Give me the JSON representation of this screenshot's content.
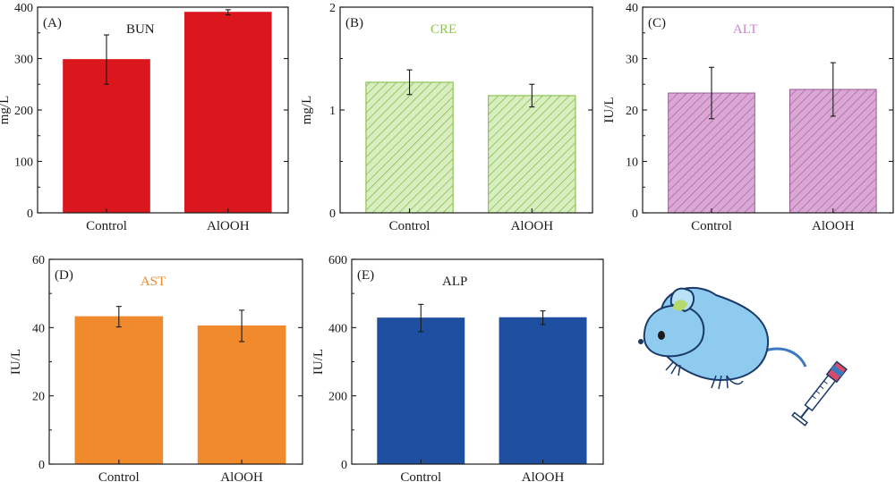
{
  "figure": {
    "panels": [
      {
        "id": "A",
        "panel_label": "(A)",
        "title": "BUN",
        "title_color": "#1a1a1a",
        "ylabel": "mg/L",
        "fill": "#d9171c",
        "hatch": false
      },
      {
        "id": "B",
        "panel_label": "(B)",
        "title": "CRE",
        "title_color": "#8cc63f",
        "ylabel": "mg/L",
        "fill": "#b7de8c",
        "hatch": true,
        "stroke": "#7dbb3b"
      },
      {
        "id": "C",
        "panel_label": "(C)",
        "title": "ALT",
        "title_color": "#cc88c8",
        "ylabel": "IU/L",
        "fill": "#dba8d6",
        "hatch": true,
        "stroke": "#9b5a97"
      },
      {
        "id": "D",
        "panel_label": "(D)",
        "title": "AST",
        "title_color": "#f08a2c",
        "ylabel": "IU/L",
        "fill": "#f08a2c",
        "hatch": false
      },
      {
        "id": "E",
        "panel_label": "(E)",
        "title": "ALP",
        "title_color": "#1a1a1a",
        "ylabel": "IU/L",
        "fill": "#1f4fa0",
        "hatch": false
      }
    ]
  },
  "chart_data": [
    {
      "type": "bar",
      "title": "BUN",
      "ylabel": "mg/L",
      "categories": [
        "Control",
        "AlOOH"
      ],
      "values": [
        298,
        390
      ],
      "errors": [
        48,
        5
      ],
      "ylim": [
        0,
        400
      ],
      "yticks": [
        0,
        100,
        200,
        300,
        400
      ]
    },
    {
      "type": "bar",
      "title": "CRE",
      "ylabel": "mg/L",
      "categories": [
        "Control",
        "AlOOH"
      ],
      "values": [
        1.27,
        1.14
      ],
      "errors": [
        0.12,
        0.11
      ],
      "ylim": [
        0,
        2
      ],
      "yticks": [
        0,
        1,
        2
      ]
    },
    {
      "type": "bar",
      "title": "ALT",
      "ylabel": "IU/L",
      "categories": [
        "Control",
        "AlOOH"
      ],
      "values": [
        23.3,
        24.0
      ],
      "errors": [
        5.0,
        5.2
      ],
      "ylim": [
        0,
        40
      ],
      "yticks": [
        0,
        10,
        20,
        30,
        40
      ]
    },
    {
      "type": "bar",
      "title": "AST",
      "ylabel": "IU/L",
      "categories": [
        "Control",
        "AlOOH"
      ],
      "values": [
        43.2,
        40.5
      ],
      "errors": [
        3.0,
        4.6
      ],
      "ylim": [
        0,
        60
      ],
      "yticks": [
        0,
        20,
        40,
        60
      ]
    },
    {
      "type": "bar",
      "title": "ALP",
      "ylabel": "IU/L",
      "categories": [
        "Control",
        "AlOOH"
      ],
      "values": [
        428,
        429
      ],
      "errors": [
        40,
        20
      ],
      "ylim": [
        0,
        600
      ],
      "yticks": [
        0,
        200,
        400,
        600
      ]
    }
  ]
}
